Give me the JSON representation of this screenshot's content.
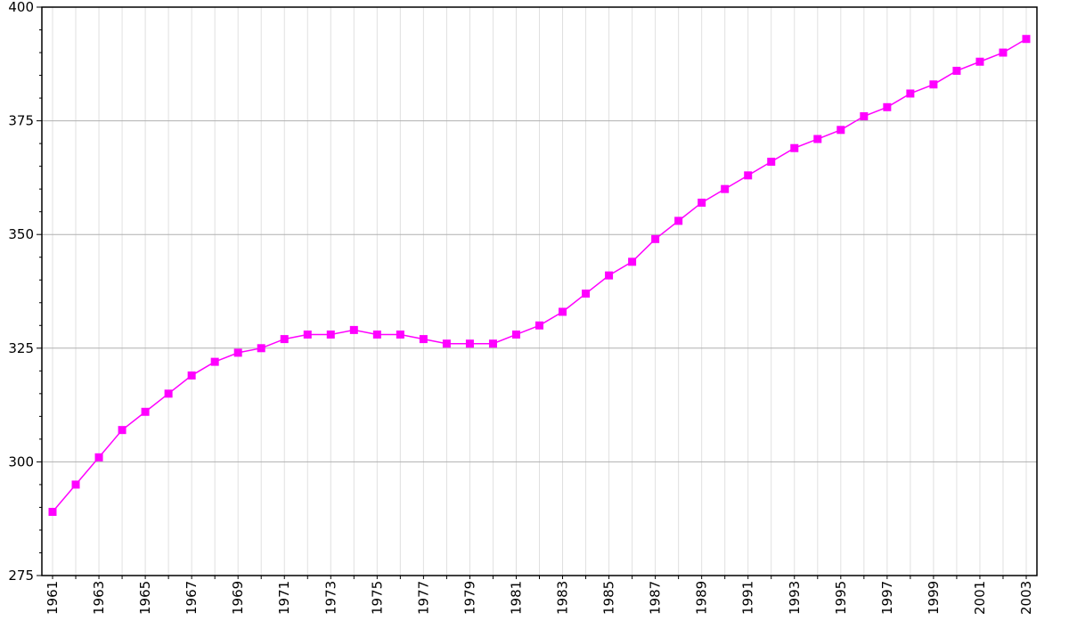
{
  "chart_data": {
    "type": "line",
    "title": "",
    "xlabel": "",
    "ylabel": "",
    "ylim": [
      275,
      400
    ],
    "xlim": [
      1961,
      2003
    ],
    "yticks": [
      275,
      300,
      325,
      350,
      375,
      400
    ],
    "xtick_labels": [
      "1961",
      "1963",
      "1965",
      "1967",
      "1969",
      "1971",
      "1973",
      "1975",
      "1977",
      "1979",
      "1981",
      "1983",
      "1985",
      "1987",
      "1989",
      "1991",
      "1993",
      "1995",
      "1997",
      "1999",
      "2001",
      "2003"
    ],
    "grid": true,
    "legend": "none",
    "colors": {
      "series": "#ff00ff",
      "grid_major": "#b0b0b0",
      "grid_minor": "#e0e0e0",
      "axis": "#000000"
    },
    "series": [
      {
        "x": [
          1961,
          1962,
          1963,
          1964,
          1965,
          1966,
          1967,
          1968,
          1969,
          1970,
          1971,
          1972,
          1973,
          1974,
          1975,
          1976,
          1977,
          1978,
          1979,
          1980,
          1981,
          1982,
          1983,
          1984,
          1985,
          1986,
          1987,
          1988,
          1989,
          1990,
          1991,
          1992,
          1993,
          1994,
          1995,
          1996,
          1997,
          1998,
          1999,
          2000,
          2001,
          2002,
          2003
        ],
        "values": [
          289,
          295,
          301,
          307,
          311,
          315,
          319,
          322,
          324,
          325,
          327,
          328,
          328,
          329,
          328,
          328,
          327,
          326,
          326,
          326,
          328,
          330,
          333,
          337,
          341,
          344,
          349,
          353,
          357,
          360,
          363,
          366,
          369,
          371,
          373,
          376,
          378,
          381,
          383,
          386,
          388,
          390,
          393
        ]
      }
    ]
  }
}
